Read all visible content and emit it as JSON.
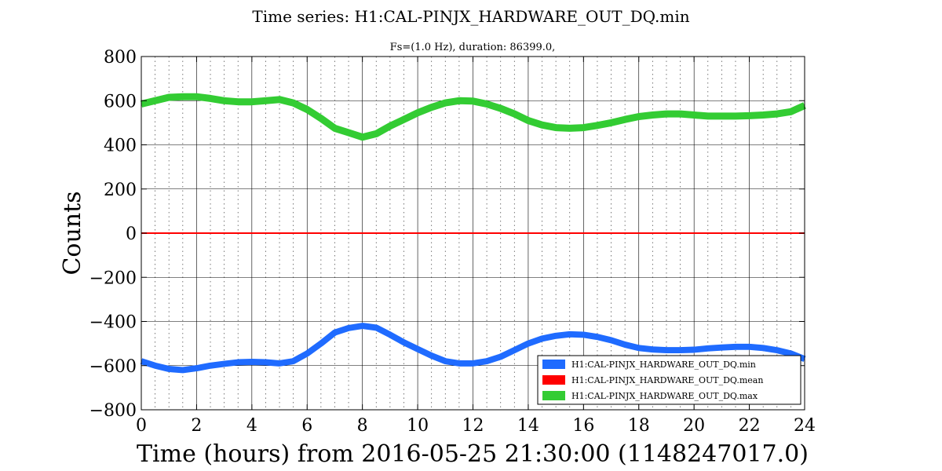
{
  "chart_data": {
    "type": "line",
    "title": "Time series:  H1:CAL-PINJX_HARDWARE_OUT_DQ.min",
    "subtitle": "Fs=(1.0 Hz), duration:  86399.0,",
    "xlabel": "Time (hours) from 2016-05-25 21:30:00 (1148247017.0)",
    "ylabel": "Counts",
    "xlim": [
      0,
      24
    ],
    "ylim": [
      -800,
      800
    ],
    "xticks": [
      0,
      2,
      4,
      6,
      8,
      10,
      12,
      14,
      16,
      18,
      20,
      22,
      24
    ],
    "yticks": [
      -800,
      -600,
      -400,
      -200,
      0,
      200,
      400,
      600,
      800
    ],
    "xtick_labels": [
      "0",
      "2",
      "4",
      "6",
      "8",
      "10",
      "12",
      "14",
      "16",
      "18",
      "20",
      "22",
      "24"
    ],
    "ytick_labels": [
      "−800",
      "−600",
      "−400",
      "−200",
      "0",
      "200",
      "400",
      "600",
      "800"
    ],
    "grid": true,
    "minor_grid_x": true,
    "legend_position": "bottom-right",
    "x": [
      0,
      0.5,
      1,
      1.5,
      2,
      2.5,
      3,
      3.5,
      4,
      4.5,
      5,
      5.5,
      6,
      6.5,
      7,
      7.5,
      8,
      8.5,
      9,
      9.5,
      10,
      10.5,
      11,
      11.5,
      12,
      12.5,
      13,
      13.5,
      14,
      14.5,
      15,
      15.5,
      16,
      16.5,
      17,
      17.5,
      18,
      18.5,
      19,
      19.5,
      20,
      20.5,
      21,
      21.5,
      22,
      22.5,
      23,
      23.5,
      24
    ],
    "series": [
      {
        "name": "H1:CAL-PINJX_HARDWARE_OUT_DQ.min",
        "color": "#1f6bff",
        "values": [
          -580,
          -600,
          -615,
          -620,
          -612,
          -600,
          -592,
          -585,
          -583,
          -585,
          -590,
          -580,
          -545,
          -500,
          -450,
          -430,
          -420,
          -428,
          -460,
          -495,
          -525,
          -555,
          -580,
          -590,
          -590,
          -580,
          -560,
          -530,
          -500,
          -478,
          -465,
          -458,
          -460,
          -470,
          -485,
          -505,
          -520,
          -527,
          -530,
          -530,
          -528,
          -522,
          -518,
          -515,
          -515,
          -520,
          -530,
          -545,
          -570
        ],
        "band": 14
      },
      {
        "name": "H1:CAL-PINJX_HARDWARE_OUT_DQ.mean",
        "color": "#ff0000",
        "values": [
          0,
          0,
          0,
          0,
          0,
          0,
          0,
          0,
          0,
          0,
          0,
          0,
          0,
          0,
          0,
          0,
          0,
          0,
          0,
          0,
          0,
          0,
          0,
          0,
          0,
          0,
          0,
          0,
          0,
          0,
          0,
          0,
          0,
          0,
          0,
          0,
          0,
          0,
          0,
          0,
          0,
          0,
          0,
          0,
          0,
          0,
          0,
          0,
          0
        ],
        "band": 1
      },
      {
        "name": "H1:CAL-PINJX_HARDWARE_OUT_DQ.max",
        "color": "#33cc33",
        "values": [
          585,
          600,
          615,
          618,
          618,
          610,
          600,
          595,
          595,
          600,
          605,
          590,
          560,
          520,
          475,
          455,
          435,
          450,
          485,
          515,
          545,
          570,
          590,
          600,
          598,
          585,
          565,
          540,
          510,
          490,
          478,
          475,
          478,
          488,
          500,
          515,
          528,
          535,
          540,
          540,
          535,
          530,
          530,
          530,
          532,
          535,
          540,
          550,
          578
        ],
        "band": 16
      }
    ]
  }
}
